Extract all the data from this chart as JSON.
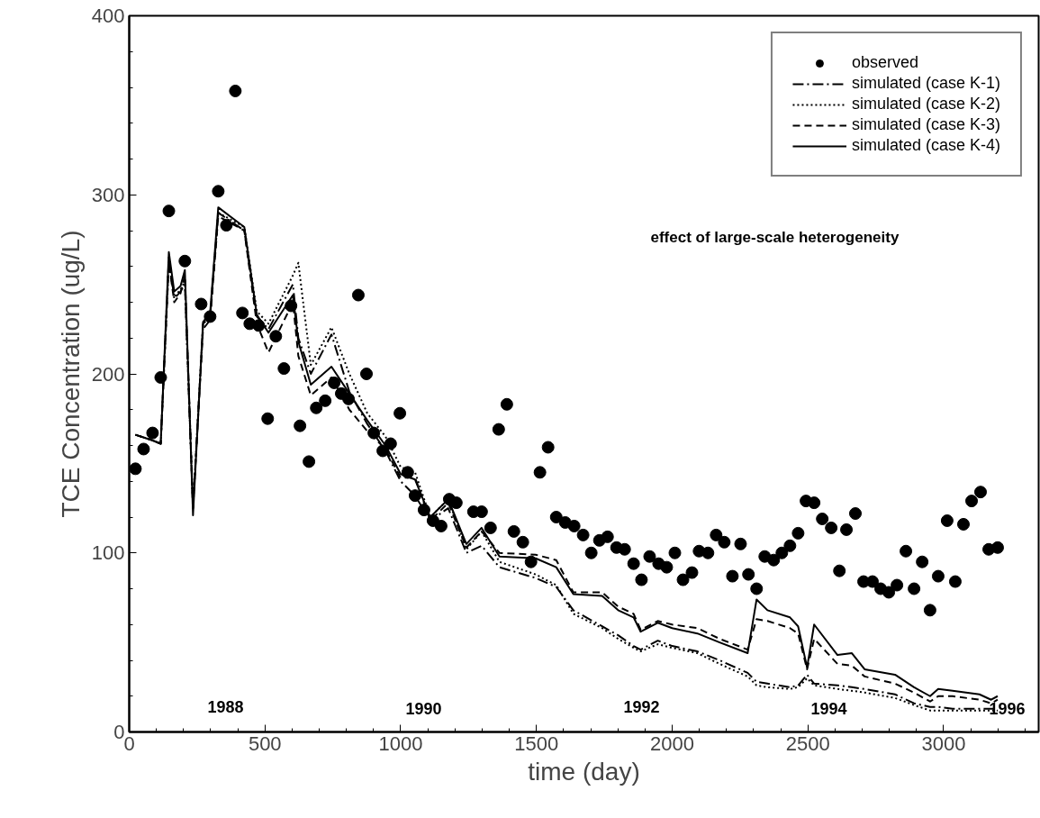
{
  "chart_data": {
    "type": "line",
    "xlabel": "time (day)",
    "ylabel": "TCE Concentration (ug/L)",
    "xlim": [
      0,
      3350
    ],
    "ylim": [
      0,
      400
    ],
    "xticks": [
      0,
      500,
      1000,
      1500,
      2000,
      2500,
      3000
    ],
    "yticks": [
      0,
      100,
      200,
      300,
      400
    ],
    "legend": "top right",
    "series": [
      {
        "name": "observed",
        "type": "scatter",
        "marker": "circle",
        "color": "#000000",
        "x": [
          23,
          53,
          86,
          116,
          146,
          205,
          265,
          298,
          328,
          358,
          391,
          417,
          444,
          477,
          510,
          540,
          570,
          596,
          629,
          662,
          689,
          722,
          755,
          781,
          808,
          844,
          874,
          901,
          934,
          963,
          997,
          1026,
          1053,
          1086,
          1119,
          1149,
          1179,
          1205,
          1268,
          1298,
          1331,
          1361,
          1391,
          1417,
          1450,
          1480,
          1513,
          1543,
          1573,
          1606,
          1639,
          1672,
          1702,
          1732,
          1762,
          1795,
          1825,
          1858,
          1887,
          1917,
          1950,
          1980,
          2010,
          2040,
          2073,
          2099,
          2132,
          2162,
          2192,
          2222,
          2252,
          2281,
          2311,
          2341,
          2374,
          2404,
          2434,
          2464,
          2493,
          2523,
          2553,
          2586,
          2616,
          2642,
          2675,
          2705,
          2738,
          2768,
          2798,
          2828,
          2861,
          2891,
          2921,
          2950,
          2980,
          3013,
          3043,
          3073,
          3103,
          3136,
          3166,
          3199
        ],
        "values": [
          147,
          158,
          167,
          198,
          291,
          263,
          239,
          232,
          302,
          283,
          358,
          234,
          228,
          227,
          175,
          221,
          203,
          238,
          171,
          151,
          181,
          185,
          195,
          189,
          186,
          244,
          200,
          167,
          157,
          161,
          178,
          145,
          132,
          124,
          118,
          115,
          130,
          128,
          123,
          123,
          114,
          169,
          183,
          112,
          106,
          95,
          145,
          159,
          120,
          117,
          115,
          110,
          100,
          107,
          109,
          103,
          102,
          94,
          85,
          98,
          94,
          92,
          100,
          85,
          89,
          101,
          100,
          110,
          106,
          87,
          105,
          88,
          80,
          98,
          96,
          100,
          104,
          111,
          129,
          128,
          119,
          114,
          90,
          113,
          122,
          84,
          84,
          80,
          78,
          82,
          101,
          80,
          95,
          68,
          87,
          118,
          84,
          116,
          129,
          134,
          102,
          103
        ]
      },
      {
        "name": "simulated (case K-1)",
        "line_style": "dashdot",
        "color": "#000000",
        "x": [
          23,
          83,
          116,
          146,
          166,
          189,
          205,
          235,
          272,
          298,
          328,
          424,
          470,
          513,
          603,
          623,
          669,
          745,
          811,
          877,
          944,
          1000,
          1053,
          1109,
          1175,
          1242,
          1298,
          1364,
          1497,
          1573,
          1636,
          1742,
          1801,
          1858,
          1884,
          1947,
          2000,
          2093,
          2175,
          2278,
          2311,
          2351,
          2434,
          2464,
          2497,
          2523,
          2609,
          2662,
          2709,
          2821,
          2891,
          2950,
          2980,
          3033,
          3132,
          3175,
          3199
        ],
        "values": [
          166,
          163,
          161,
          265,
          242,
          246,
          250,
          125,
          228,
          232,
          290,
          280,
          232,
          225,
          250,
          220,
          200,
          222,
          190,
          172,
          157,
          140,
          132,
          118,
          125,
          100,
          104,
          92,
          86,
          81,
          68,
          59,
          54,
          48,
          46,
          51,
          48,
          45,
          40,
          33,
          28,
          27,
          25,
          26,
          32,
          27,
          26,
          25,
          24,
          21,
          16,
          14,
          14,
          13,
          13,
          13,
          13
        ]
      },
      {
        "name": "simulated (case K-2)",
        "line_style": "dotted",
        "color": "#000000",
        "x": [
          23,
          83,
          116,
          146,
          166,
          189,
          205,
          235,
          272,
          298,
          328,
          424,
          470,
          513,
          603,
          623,
          669,
          745,
          811,
          877,
          944,
          1000,
          1053,
          1109,
          1175,
          1242,
          1298,
          1364,
          1497,
          1573,
          1636,
          1742,
          1801,
          1858,
          1884,
          1947,
          2000,
          2093,
          2175,
          2278,
          2311,
          2351,
          2434,
          2464,
          2497,
          2523,
          2609,
          2662,
          2709,
          2821,
          2891,
          2950,
          2980,
          3033,
          3132,
          3175,
          3199
        ],
        "values": [
          166,
          163,
          161,
          262,
          243,
          247,
          252,
          125,
          228,
          232,
          290,
          282,
          235,
          228,
          255,
          262,
          205,
          226,
          200,
          178,
          165,
          148,
          145,
          120,
          130,
          102,
          112,
          95,
          88,
          82,
          66,
          58,
          52,
          47,
          45,
          49,
          47,
          44,
          38,
          31,
          26,
          25,
          24,
          25,
          30,
          26,
          24,
          23,
          22,
          19,
          15,
          12,
          12,
          12,
          12,
          12,
          12
        ]
      },
      {
        "name": "simulated (case K-3)",
        "line_style": "dashed",
        "color": "#000000",
        "x": [
          23,
          83,
          116,
          146,
          166,
          189,
          205,
          235,
          272,
          298,
          328,
          424,
          470,
          513,
          603,
          623,
          669,
          745,
          811,
          877,
          944,
          1000,
          1053,
          1109,
          1175,
          1242,
          1298,
          1364,
          1497,
          1573,
          1636,
          1742,
          1801,
          1858,
          1884,
          1947,
          2000,
          2093,
          2175,
          2278,
          2311,
          2351,
          2434,
          2464,
          2497,
          2523,
          2609,
          2662,
          2709,
          2821,
          2891,
          2950,
          2980,
          3033,
          3132,
          3175,
          3199
        ],
        "values": [
          166,
          163,
          161,
          262,
          240,
          245,
          255,
          125,
          225,
          230,
          288,
          280,
          228,
          212,
          240,
          210,
          188,
          198,
          180,
          168,
          158,
          142,
          142,
          118,
          128,
          103,
          112,
          100,
          99,
          96,
          78,
          78,
          70,
          66,
          57,
          62,
          60,
          58,
          52,
          46,
          63,
          62,
          58,
          55,
          35,
          52,
          38,
          37,
          31,
          27,
          22,
          17,
          20,
          20,
          18,
          16,
          18
        ]
      },
      {
        "name": "simulated (case K-4)",
        "line_style": "solid",
        "color": "#000000",
        "x": [
          23,
          83,
          116,
          146,
          166,
          189,
          205,
          235,
          272,
          298,
          328,
          424,
          470,
          513,
          603,
          623,
          669,
          745,
          811,
          877,
          944,
          1000,
          1053,
          1109,
          1175,
          1242,
          1298,
          1364,
          1497,
          1573,
          1636,
          1742,
          1801,
          1858,
          1884,
          1947,
          2000,
          2093,
          2175,
          2278,
          2311,
          2351,
          2434,
          2464,
          2497,
          2523,
          2609,
          2662,
          2709,
          2821,
          2891,
          2950,
          2980,
          3033,
          3132,
          3175,
          3199
        ],
        "values": [
          166,
          163,
          161,
          268,
          246,
          249,
          258,
          121,
          229,
          234,
          293,
          282,
          233,
          223,
          244,
          218,
          194,
          204,
          189,
          174,
          160,
          144,
          141,
          120,
          130,
          105,
          114,
          98,
          97,
          92,
          77,
          76,
          68,
          64,
          56,
          61,
          58,
          55,
          50,
          44,
          74,
          68,
          64,
          59,
          36,
          60,
          43,
          44,
          35,
          32,
          25,
          20,
          24,
          23,
          21,
          18,
          20
        ]
      }
    ],
    "annotations": [
      "effect of large-scale heterogeneity",
      "1988",
      "1990",
      "1992",
      "1994",
      "1996"
    ]
  }
}
